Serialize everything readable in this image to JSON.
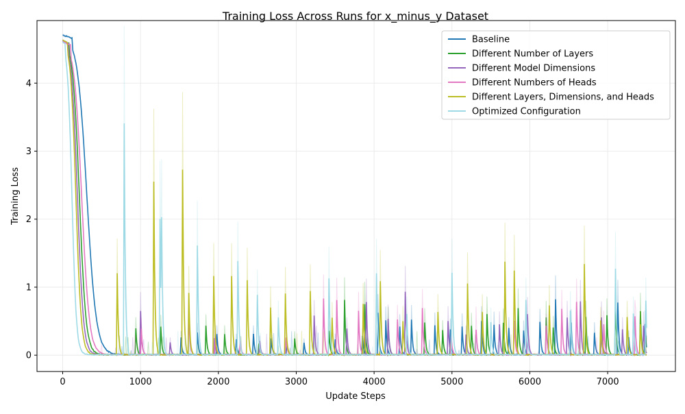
{
  "chart_data": {
    "type": "line",
    "title": "Training Loss Across Runs for x_minus_y Dataset",
    "xlabel": "Update Steps",
    "ylabel": "Training Loss",
    "xlim": [
      -330,
      7870
    ],
    "ylim": [
      -0.24,
      4.92
    ],
    "xticks": [
      0,
      1000,
      2000,
      3000,
      4000,
      5000,
      6000,
      7000
    ],
    "yticks": [
      0,
      1,
      2,
      3,
      4
    ],
    "grid": true,
    "legend_position": "top-right",
    "series": [
      {
        "name": "Baseline",
        "color": "#1f77b4",
        "initial": 4.7,
        "decay_mid": 310,
        "decay_width": 60,
        "spikes": [
          [
            1520,
            0.25
          ],
          [
            1730,
            0.32
          ],
          [
            1980,
            0.3
          ],
          [
            2230,
            0.22
          ],
          [
            2450,
            0.3
          ],
          [
            2680,
            0.24
          ],
          [
            2880,
            0.17
          ],
          [
            3100,
            0.17
          ],
          [
            3500,
            0.22
          ],
          [
            3850,
            0.27
          ],
          [
            4050,
            0.62
          ],
          [
            4150,
            0.5
          ],
          [
            4330,
            0.42
          ],
          [
            4480,
            0.51
          ],
          [
            4780,
            0.43
          ],
          [
            4980,
            0.37
          ],
          [
            5130,
            0.42
          ],
          [
            5380,
            0.5
          ],
          [
            5540,
            0.44
          ],
          [
            5730,
            0.39
          ],
          [
            5920,
            0.35
          ],
          [
            6130,
            0.48
          ],
          [
            6330,
            0.82
          ],
          [
            6530,
            0.47
          ],
          [
            6830,
            0.33
          ],
          [
            7130,
            0.77
          ],
          [
            7270,
            0.25
          ],
          [
            7480,
            0.45
          ]
        ]
      },
      {
        "name": "Different Number of Layers",
        "color": "#2ca02c",
        "initial": 4.62,
        "decay_mid": 215,
        "decay_width": 42,
        "spikes": [
          [
            940,
            0.38
          ],
          [
            1260,
            0.41
          ],
          [
            1840,
            0.42
          ],
          [
            2080,
            0.3
          ],
          [
            2520,
            0.17
          ],
          [
            2980,
            0.24
          ],
          [
            3420,
            0.35
          ],
          [
            3620,
            0.8
          ],
          [
            3880,
            0.75
          ],
          [
            4180,
            0.5
          ],
          [
            4650,
            0.48
          ],
          [
            4880,
            0.36
          ],
          [
            5250,
            0.43
          ],
          [
            5450,
            0.6
          ],
          [
            5660,
            0.47
          ],
          [
            5850,
            0.68
          ],
          [
            6210,
            0.55
          ],
          [
            6300,
            0.4
          ],
          [
            6720,
            0.55
          ],
          [
            6990,
            0.58
          ],
          [
            7100,
            0.77
          ],
          [
            7420,
            0.64
          ]
        ]
      },
      {
        "name": "Different Model Dimensions",
        "color": "#9467bd",
        "initial": 4.62,
        "decay_mid": 190,
        "decay_width": 38,
        "spikes": [
          [
            1000,
            0.65
          ],
          [
            1380,
            0.18
          ],
          [
            1950,
            0.25
          ],
          [
            2530,
            0.2
          ],
          [
            3230,
            0.57
          ],
          [
            3650,
            0.38
          ],
          [
            3900,
            0.78
          ],
          [
            4180,
            0.52
          ],
          [
            4400,
            0.92
          ],
          [
            4950,
            0.5
          ],
          [
            5180,
            0.3
          ],
          [
            5610,
            0.44
          ],
          [
            5970,
            0.6
          ],
          [
            6480,
            0.55
          ],
          [
            6650,
            0.78
          ],
          [
            6920,
            0.55
          ],
          [
            7190,
            0.38
          ],
          [
            7460,
            0.42
          ]
        ]
      },
      {
        "name": "Different Numbers of Heads",
        "color": "#e377c2",
        "initial": 4.6,
        "decay_mid": 245,
        "decay_width": 48,
        "spikes": [
          [
            1010,
            0.38
          ],
          [
            1620,
            0.6
          ],
          [
            1960,
            0.3
          ],
          [
            2280,
            0.2
          ],
          [
            2870,
            0.25
          ],
          [
            3350,
            0.83
          ],
          [
            3520,
            0.8
          ],
          [
            3800,
            0.65
          ],
          [
            4300,
            0.52
          ],
          [
            4620,
            0.68
          ],
          [
            4990,
            0.27
          ],
          [
            5310,
            0.36
          ],
          [
            5800,
            0.5
          ],
          [
            6210,
            0.42
          ],
          [
            6410,
            0.67
          ],
          [
            6600,
            0.78
          ],
          [
            6950,
            0.45
          ],
          [
            7350,
            0.56
          ]
        ]
      },
      {
        "name": "Different Layers, Dimensions, and Heads",
        "color": "#bcbd22",
        "initial": 4.63,
        "decay_mid": 170,
        "decay_width": 34,
        "spikes": [
          [
            700,
            1.2
          ],
          [
            1170,
            2.55
          ],
          [
            1540,
            2.72
          ],
          [
            1620,
            0.91
          ],
          [
            1940,
            1.15
          ],
          [
            2170,
            1.15
          ],
          [
            2370,
            1.1
          ],
          [
            2670,
            0.7
          ],
          [
            2860,
            0.9
          ],
          [
            3180,
            0.93
          ],
          [
            3460,
            0.55
          ],
          [
            3860,
            0.74
          ],
          [
            4080,
            1.08
          ],
          [
            4370,
            0.5
          ],
          [
            4820,
            0.63
          ],
          [
            5200,
            1.05
          ],
          [
            5390,
            0.62
          ],
          [
            5680,
            1.36
          ],
          [
            5800,
            1.24
          ],
          [
            6250,
            0.72
          ],
          [
            6700,
            1.33
          ],
          [
            6910,
            0.5
          ],
          [
            7250,
            0.55
          ],
          [
            7420,
            0.45
          ]
        ]
      },
      {
        "name": "Optimized Configuration",
        "color": "#9edae5",
        "initial": 4.6,
        "decay_mid": 120,
        "decay_width": 28,
        "spikes": [
          [
            790,
            3.4
          ],
          [
            1250,
            2.0
          ],
          [
            1270,
            1.55
          ],
          [
            1730,
            1.6
          ],
          [
            2250,
            1.38
          ],
          [
            2500,
            0.88
          ],
          [
            2770,
            0.55
          ],
          [
            3420,
            1.12
          ],
          [
            4030,
            1.2
          ],
          [
            4420,
            0.6
          ],
          [
            5000,
            1.2
          ],
          [
            5500,
            0.48
          ],
          [
            5950,
            0.8
          ],
          [
            6520,
            0.65
          ],
          [
            7100,
            1.27
          ],
          [
            7330,
            0.6
          ],
          [
            7490,
            0.8
          ]
        ]
      }
    ]
  }
}
